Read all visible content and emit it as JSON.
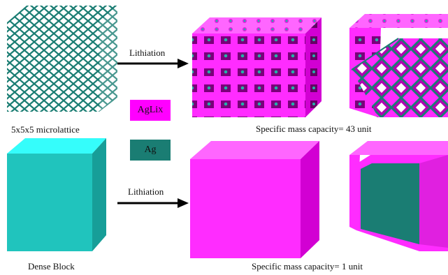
{
  "labels": {
    "microlattice": "5x5x5 microlattice",
    "dense_block": "Dense Block",
    "lithiation_top": "Lithiation",
    "lithiation_bottom": "Lithiation",
    "capacity_top": "Specific mass capacity= 43 unit",
    "capacity_bottom": "Specific mass capacity= 1 unit"
  },
  "legend": [
    {
      "base": "AgLi",
      "sub": "X",
      "color": "#ff00ff"
    },
    {
      "base": "Ag",
      "sub": "",
      "color": "#1a7d73"
    }
  ],
  "colors": {
    "ag": "#1a7d73",
    "ag_light": "#23b3a8",
    "agli": "#ff00ff",
    "block_front": "#20c4bd",
    "block_top": "#35fdfb",
    "block_side": "#179e98",
    "magenta_front": "#ff2cff",
    "magenta_side": "#d200d3",
    "magenta_top": "#ff66ff"
  }
}
